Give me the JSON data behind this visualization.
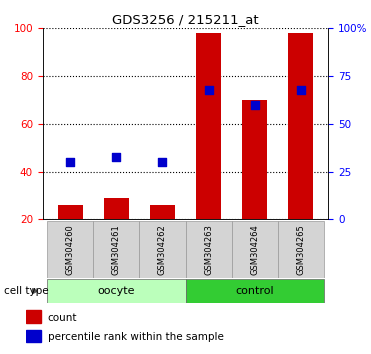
{
  "title": "GDS3256 / 215211_at",
  "samples": [
    "GSM304260",
    "GSM304261",
    "GSM304262",
    "GSM304263",
    "GSM304264",
    "GSM304265"
  ],
  "red_bar_values": [
    26,
    29,
    26,
    98,
    70,
    98
  ],
  "blue_dot_left_values": [
    44,
    46,
    44,
    74,
    68,
    74
  ],
  "ylim_left": [
    20,
    100
  ],
  "ylim_right": [
    0,
    100
  ],
  "yticks_left": [
    20,
    40,
    60,
    80,
    100
  ],
  "ytick_labels_left": [
    "20",
    "40",
    "60",
    "80",
    "100"
  ],
  "yticks_right": [
    0,
    25,
    50,
    75,
    100
  ],
  "ytick_labels_right": [
    "0",
    "25",
    "50",
    "75",
    "100%"
  ],
  "bar_color": "#cc0000",
  "dot_color": "#0000cc",
  "groups": [
    {
      "label": "oocyte",
      "indices": [
        0,
        1,
        2
      ],
      "color": "#bbffbb"
    },
    {
      "label": "control",
      "indices": [
        3,
        4,
        5
      ],
      "color": "#33cc33"
    }
  ],
  "legend_items": [
    {
      "color": "#cc0000",
      "label": "count"
    },
    {
      "color": "#0000cc",
      "label": "percentile rank within the sample"
    }
  ],
  "bar_width": 0.55,
  "dot_size": 30
}
